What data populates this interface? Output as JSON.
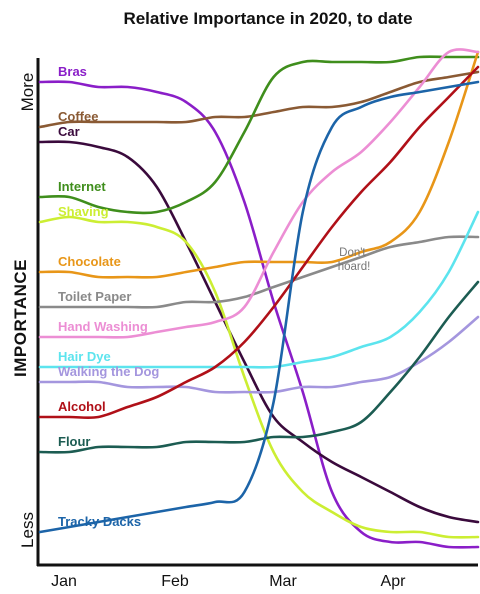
{
  "chart_data": {
    "type": "line",
    "title": "Relative Importance in 2020, to date",
    "ylabel": "IMPORTANCE",
    "y_top_label": "More",
    "y_bottom_label": "Less",
    "x_ticks": [
      "Jan",
      "Feb",
      "Mar",
      "Apr"
    ],
    "x": [
      0,
      0.25,
      0.5,
      0.75,
      1.0,
      1.25,
      1.5,
      1.75,
      2.0,
      2.25,
      2.5,
      2.75,
      3.0,
      3.25,
      3.5,
      3.75
    ],
    "ylim": [
      0,
      100
    ],
    "annotation": "Don't hoard!",
    "series": [
      {
        "name": "Bras",
        "color": "#8a1ec8",
        "values": [
          94,
          94,
          93,
          93,
          92,
          90,
          84,
          70,
          50,
          32,
          12,
          4,
          2,
          2,
          1,
          1
        ]
      },
      {
        "name": "Coffee",
        "color": "#8a5a34",
        "values": [
          85,
          86,
          86,
          86,
          86,
          86,
          87,
          87,
          88,
          89,
          89,
          90,
          92,
          94,
          95,
          96
        ]
      },
      {
        "name": "Car",
        "color": "#3a0a3c",
        "values": [
          82,
          82,
          81,
          79,
          73,
          62,
          50,
          38,
          27,
          22,
          18,
          15,
          12,
          9,
          7,
          6
        ]
      },
      {
        "name": "Internet",
        "color": "#3f8e1c",
        "values": [
          71,
          71,
          69,
          68,
          68,
          70,
          74,
          84,
          95,
          98,
          98,
          98,
          98,
          99,
          99,
          99
        ]
      },
      {
        "name": "Shaving",
        "color": "#ccee33",
        "values": [
          66,
          67,
          66,
          66,
          65,
          62,
          52,
          35,
          20,
          12,
          8,
          5,
          4,
          4,
          3,
          3
        ]
      },
      {
        "name": "Chocolate",
        "color": "#e89618",
        "values": [
          56,
          56,
          55,
          55,
          55,
          56,
          57,
          58,
          58,
          58,
          58,
          60,
          62,
          68,
          82,
          100
        ]
      },
      {
        "name": "Toilet Paper",
        "color": "#8a8a8a",
        "values": [
          49,
          49,
          49,
          49,
          49,
          50,
          50,
          51,
          53,
          55,
          57,
          59,
          61,
          62,
          63,
          63
        ]
      },
      {
        "name": "Hand Washing",
        "color": "#ec8ed4",
        "values": [
          43,
          43,
          43,
          43,
          44,
          45,
          46,
          49,
          60,
          70,
          76,
          80,
          86,
          93,
          100,
          100
        ]
      },
      {
        "name": "Hair Dye",
        "color": "#5ce4ee",
        "values": [
          37,
          37,
          37,
          37,
          37,
          37,
          37,
          37,
          37,
          38,
          39,
          41,
          43,
          48,
          56,
          68
        ]
      },
      {
        "name": "Walking the Dog",
        "color": "#a496de",
        "values": [
          34,
          34,
          34,
          33,
          33,
          33,
          32,
          32,
          32,
          33,
          33,
          34,
          35,
          38,
          42,
          47
        ]
      },
      {
        "name": "Alcohol",
        "color": "#b01018",
        "values": [
          27,
          27,
          27,
          29,
          31,
          34,
          37,
          42,
          49,
          57,
          65,
          72,
          78,
          85,
          91,
          97
        ]
      },
      {
        "name": "Flour",
        "color": "#1c5c52",
        "values": [
          20,
          20,
          21,
          21,
          21,
          22,
          22,
          22,
          23,
          23,
          24,
          26,
          32,
          39,
          47,
          54
        ]
      },
      {
        "name": "Tracky Dacks",
        "color": "#1c64a8",
        "values": [
          4,
          5,
          6,
          7,
          8,
          9,
          10,
          12,
          30,
          68,
          85,
          89,
          91,
          92,
          93,
          94
        ]
      }
    ]
  }
}
